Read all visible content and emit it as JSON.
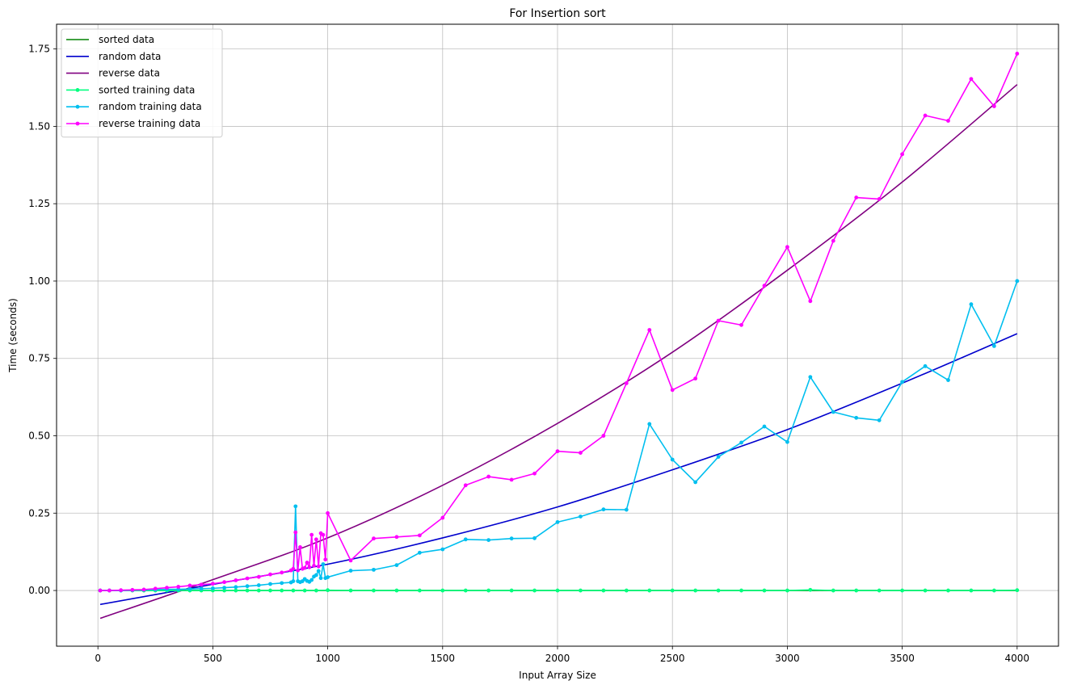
{
  "chart_data": {
    "type": "line",
    "title": "For Insertion sort",
    "xlabel": "Input Array Size",
    "ylabel": "Time (seconds)",
    "xlim": [
      -180,
      4180
    ],
    "ylim": [
      -0.18,
      1.83
    ],
    "xticks": [
      0,
      500,
      1000,
      1500,
      2000,
      2500,
      3000,
      3500,
      4000
    ],
    "xtick_labels": [
      "0",
      "500",
      "1000",
      "1500",
      "2000",
      "2500",
      "3000",
      "3500",
      "4000"
    ],
    "yticks": [
      0.0,
      0.25,
      0.5,
      0.75,
      1.0,
      1.25,
      1.5,
      1.75
    ],
    "ytick_labels": [
      "0.00",
      "0.25",
      "0.50",
      "0.75",
      "1.00",
      "1.25",
      "1.50",
      "1.75"
    ],
    "grid": true,
    "legend_position": "top-left",
    "fit_lines": [
      {
        "name": "sorted data",
        "color": "#008000",
        "x": [
          10,
          4000
        ],
        "y": [
          0.0,
          0.0
        ]
      },
      {
        "name": "random data",
        "color": "#0000cd",
        "x": [
          10,
          500,
          1000,
          1500,
          2000,
          2500,
          3000,
          3500,
          4000
        ],
        "y": [
          -0.045,
          0.02,
          0.085,
          0.17,
          0.27,
          0.39,
          0.52,
          0.67,
          0.83
        ]
      },
      {
        "name": "reverse data",
        "color": "#800080",
        "x": [
          10,
          500,
          1000,
          1500,
          2000,
          2500,
          3000,
          3500,
          4000
        ],
        "y": [
          -0.09,
          0.035,
          0.17,
          0.34,
          0.54,
          0.77,
          1.035,
          1.32,
          1.635
        ]
      }
    ],
    "training_series": [
      {
        "name": "sorted training data",
        "color": "#00ff7f",
        "x": [
          10,
          50,
          100,
          150,
          200,
          250,
          300,
          350,
          400,
          450,
          500,
          550,
          600,
          650,
          700,
          750,
          800,
          850,
          900,
          950,
          1000,
          1100,
          1200,
          1300,
          1400,
          1500,
          1600,
          1700,
          1800,
          1900,
          2000,
          2100,
          2200,
          2300,
          2400,
          2500,
          2600,
          2700,
          2800,
          2900,
          3000,
          3100,
          3200,
          3300,
          3400,
          3500,
          3600,
          3700,
          3800,
          3900,
          4000
        ],
        "y": [
          0.0,
          0.0,
          0.0,
          0.0,
          0.0,
          0.0,
          0.0,
          0.0,
          0.0,
          0.0,
          0.0,
          0.0,
          0.0,
          0.0,
          0.0,
          0.0,
          0.0,
          0.0,
          0.0,
          0.0,
          0.001,
          0.0,
          0.0,
          0.0,
          0.0,
          0.0,
          0.0,
          0.0,
          0.0,
          0.0,
          0.0,
          0.0,
          0.0,
          0.0,
          0.0,
          0.0,
          0.0,
          0.0,
          0.0,
          0.0,
          0.0,
          0.002,
          0.0,
          0.0,
          0.0,
          0.0,
          0.0,
          0.0,
          0.0,
          0.0,
          0.001
        ]
      },
      {
        "name": "random training data",
        "color": "#00bfef",
        "x": [
          10,
          50,
          100,
          150,
          200,
          250,
          300,
          350,
          400,
          450,
          500,
          550,
          600,
          650,
          700,
          750,
          800,
          840,
          850,
          860,
          870,
          880,
          890,
          900,
          910,
          920,
          930,
          940,
          950,
          960,
          970,
          980,
          990,
          1000,
          1100,
          1200,
          1300,
          1400,
          1500,
          1600,
          1700,
          1800,
          1900,
          2000,
          2100,
          2200,
          2300,
          2400,
          2500,
          2600,
          2700,
          2800,
          2900,
          3000,
          3100,
          3200,
          3300,
          3400,
          3500,
          3600,
          3700,
          3800,
          3900,
          4000
        ],
        "y": [
          0.0,
          0.0,
          0.0,
          0.001,
          0.002,
          0.003,
          0.004,
          0.004,
          0.005,
          0.006,
          0.007,
          0.009,
          0.011,
          0.014,
          0.017,
          0.021,
          0.024,
          0.026,
          0.03,
          0.272,
          0.03,
          0.027,
          0.03,
          0.037,
          0.031,
          0.028,
          0.034,
          0.045,
          0.05,
          0.063,
          0.04,
          0.085,
          0.04,
          0.043,
          0.064,
          0.067,
          0.082,
          0.122,
          0.133,
          0.165,
          0.163,
          0.168,
          0.169,
          0.221,
          0.239,
          0.262,
          0.261,
          0.538,
          0.423,
          0.35,
          0.432,
          0.478,
          0.53,
          0.48,
          0.69,
          0.577,
          0.558,
          0.55,
          0.674,
          0.725,
          0.68,
          0.925,
          0.79,
          1.0
        ]
      },
      {
        "name": "reverse training data",
        "color": "#ff00ff",
        "x": [
          10,
          50,
          100,
          150,
          200,
          250,
          300,
          350,
          400,
          450,
          500,
          550,
          600,
          650,
          700,
          750,
          800,
          840,
          850,
          860,
          870,
          880,
          890,
          900,
          910,
          920,
          930,
          940,
          950,
          960,
          970,
          980,
          990,
          1000,
          1100,
          1200,
          1300,
          1400,
          1500,
          1600,
          1700,
          1800,
          1900,
          2000,
          2100,
          2200,
          2300,
          2400,
          2500,
          2600,
          2700,
          2800,
          2900,
          3000,
          3100,
          3200,
          3300,
          3400,
          3500,
          3600,
          3700,
          3800,
          3900,
          4000
        ],
        "y": [
          0.0,
          0.0,
          0.001,
          0.002,
          0.003,
          0.006,
          0.009,
          0.012,
          0.016,
          0.019,
          0.022,
          0.027,
          0.033,
          0.039,
          0.044,
          0.052,
          0.058,
          0.065,
          0.07,
          0.188,
          0.065,
          0.14,
          0.07,
          0.073,
          0.09,
          0.075,
          0.18,
          0.08,
          0.165,
          0.078,
          0.185,
          0.18,
          0.1,
          0.25,
          0.097,
          0.168,
          0.173,
          0.178,
          0.235,
          0.34,
          0.368,
          0.358,
          0.378,
          0.45,
          0.445,
          0.5,
          0.67,
          0.842,
          0.648,
          0.685,
          0.872,
          0.858,
          0.985,
          1.11,
          0.935,
          1.13,
          1.27,
          1.265,
          1.41,
          1.535,
          1.518,
          1.653,
          1.565,
          1.735
        ]
      }
    ]
  }
}
